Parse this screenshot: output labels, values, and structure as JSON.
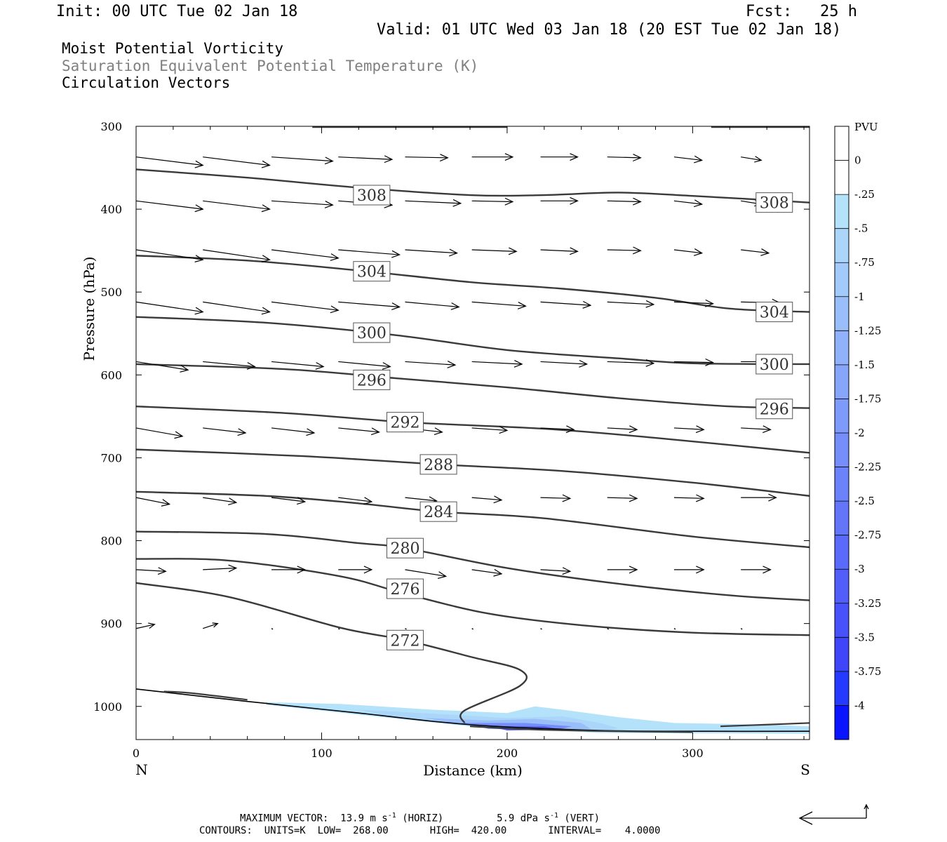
{
  "header": {
    "init": "Init: 00 UTC Tue 02 Jan 18",
    "fcst": "Fcst:   25 h",
    "valid": "Valid: 01 UTC Wed 03 Jan 18 (20 EST Tue 02 Jan 18)"
  },
  "fields": {
    "line1": "Moist Potential Vorticity",
    "line2": "Saturation Equivalent Potential Temperature (K)",
    "line3": "Circulation Vectors"
  },
  "footer": {
    "maxvec_prefix": "MAXIMUM VECTOR:  13.9 m s",
    "horiz": "(HORIZ)",
    "vert_prefix": "5.9 dPa s",
    "vert": "(VERT)",
    "exp": "-1",
    "contours": "CONTOURS:  UNITS=K  LOW=  268.00       HIGH=  420.00       INTERVAL=    4.0000"
  },
  "colors": {
    "contour": "#3a3a3a",
    "vector": "#000000",
    "pv_light": "#b4e2fa",
    "pv_dark": "#0000ff"
  },
  "chart_data": {
    "type": "cross-section",
    "xlabel": "Distance (km)",
    "ylabel": "Pressure (hPa)",
    "xlim": [
      0,
      363
    ],
    "ylim": [
      300,
      1040
    ],
    "x_ticks": [
      0,
      100,
      200,
      300
    ],
    "y_ticks": [
      300,
      400,
      500,
      600,
      700,
      800,
      900,
      1000
    ],
    "x_end_labels": {
      "left": "N",
      "right": "S"
    },
    "colorbar": {
      "unit": "PVU",
      "labels": [
        "0",
        "-.25",
        "-.5",
        "-.75",
        "-1",
        "-1.25",
        "-1.5",
        "-1.75",
        "-2",
        "-2.25",
        "-2.5",
        "-2.75",
        "-3",
        "-3.25",
        "-3.5",
        "-3.75",
        "-4"
      ],
      "colors": [
        "#ffffff",
        "#ffffff",
        "#b4e2fa",
        "#abd6fa",
        "#a2cafa",
        "#99befa",
        "#90b2fa",
        "#87a6fa",
        "#7e9afa",
        "#758efa",
        "#6c82fa",
        "#6376fa",
        "#5a6afa",
        "#515efa",
        "#4852fa",
        "#3f46fa",
        "#243aff",
        "#0a14ff"
      ]
    },
    "contours": [
      {
        "label": "308",
        "points": [
          [
            0,
            352
          ],
          [
            60,
            362
          ],
          [
            120,
            374
          ],
          [
            180,
            383
          ],
          [
            220,
            383
          ],
          [
            260,
            380
          ],
          [
            300,
            384
          ],
          [
            363,
            392
          ]
        ],
        "label_positions": [
          [
            127,
            383
          ],
          [
            344,
            392
          ]
        ]
      },
      {
        "label": "304",
        "points": [
          [
            0,
            456
          ],
          [
            60,
            462
          ],
          [
            120,
            474
          ],
          [
            180,
            488
          ],
          [
            230,
            496
          ],
          [
            280,
            507
          ],
          [
            320,
            520
          ],
          [
            363,
            524
          ]
        ],
        "label_positions": [
          [
            127,
            475
          ],
          [
            344,
            524
          ]
        ]
      },
      {
        "label": "300",
        "points": [
          [
            0,
            530
          ],
          [
            70,
            537
          ],
          [
            140,
            552
          ],
          [
            200,
            570
          ],
          [
            260,
            580
          ],
          [
            300,
            586
          ],
          [
            363,
            587
          ]
        ],
        "label_positions": [
          [
            127,
            549
          ],
          [
            344,
            587
          ]
        ]
      },
      {
        "label": "296",
        "points": [
          [
            0,
            587
          ],
          [
            80,
            593
          ],
          [
            140,
            604
          ],
          [
            200,
            615
          ],
          [
            260,
            628
          ],
          [
            320,
            638
          ],
          [
            363,
            640
          ]
        ],
        "label_positions": [
          [
            127,
            606
          ],
          [
            344,
            641
          ]
        ]
      },
      {
        "label": "292",
        "points": [
          [
            0,
            638
          ],
          [
            80,
            646
          ],
          [
            145,
            657
          ],
          [
            220,
            665
          ],
          [
            280,
            676
          ],
          [
            363,
            694
          ]
        ],
        "label_positions": [
          [
            145,
            657
          ]
        ]
      },
      {
        "label": "288",
        "points": [
          [
            0,
            690
          ],
          [
            90,
            698
          ],
          [
            163,
            708
          ],
          [
            230,
            716
          ],
          [
            300,
            730
          ],
          [
            363,
            746
          ]
        ],
        "label_positions": [
          [
            163,
            708
          ]
        ]
      },
      {
        "label": "284",
        "points": [
          [
            0,
            741
          ],
          [
            70,
            746
          ],
          [
            120,
            755
          ],
          [
            163,
            765
          ],
          [
            220,
            773
          ],
          [
            300,
            795
          ],
          [
            363,
            808
          ]
        ],
        "label_positions": [
          [
            163,
            765
          ]
        ]
      },
      {
        "label": "280",
        "points": [
          [
            0,
            789
          ],
          [
            70,
            792
          ],
          [
            120,
            803
          ],
          [
            145,
            809
          ],
          [
            200,
            833
          ],
          [
            260,
            852
          ],
          [
            320,
            866
          ],
          [
            363,
            872
          ]
        ],
        "label_positions": [
          [
            145,
            809
          ]
        ]
      },
      {
        "label": "276",
        "points": [
          [
            0,
            822
          ],
          [
            50,
            824
          ],
          [
            110,
            843
          ],
          [
            145,
            864
          ],
          [
            190,
            888
          ],
          [
            240,
            902
          ],
          [
            300,
            911
          ],
          [
            363,
            914
          ]
        ],
        "label_positions": [
          [
            145,
            858
          ]
        ]
      },
      {
        "label": "272",
        "points": [
          [
            0,
            851
          ],
          [
            50,
            868
          ],
          [
            110,
            905
          ],
          [
            145,
            920
          ],
          [
            180,
            940
          ],
          [
            207,
            956
          ],
          [
            207,
            975
          ],
          [
            177,
            1005
          ],
          [
            177,
            1020
          ]
        ],
        "label_positions": [
          [
            145,
            920
          ]
        ]
      }
    ],
    "surface_line": [
      [
        0,
        979
      ],
      [
        60,
        994
      ],
      [
        120,
        1008
      ],
      [
        180,
        1022
      ],
      [
        250,
        1029
      ],
      [
        310,
        1030
      ],
      [
        363,
        1030
      ]
    ],
    "surface_fragments": [
      [
        [
          15,
          982
        ],
        [
          30,
          984
        ],
        [
          60,
          992
        ]
      ],
      [
        [
          315,
          1024
        ],
        [
          340,
          1022
        ],
        [
          363,
          1020
        ]
      ],
      [
        [
          180,
          1024
        ],
        [
          215,
          1028
        ],
        [
          260,
          1030
        ],
        [
          300,
          1031
        ]
      ]
    ],
    "pv_shading": {
      "value_range": [
        "-.25",
        "-4"
      ],
      "regions": [
        {
          "level": "-.25",
          "points": [
            [
              70,
              995
            ],
            [
              110,
              997
            ],
            [
              160,
              1004
            ],
            [
              200,
              1008
            ],
            [
              215,
              1000
            ],
            [
              230,
              1004
            ],
            [
              260,
              1013
            ],
            [
              290,
              1020
            ],
            [
              340,
              1022
            ],
            [
              363,
              1024
            ],
            [
              363,
              1033
            ],
            [
              250,
              1032
            ],
            [
              180,
              1024
            ],
            [
              120,
              1010
            ],
            [
              70,
              998
            ]
          ]
        },
        {
          "level": "-.5",
          "points": [
            [
              120,
              1004
            ],
            [
              170,
              1010
            ],
            [
              200,
              1014
            ],
            [
              230,
              1012
            ],
            [
              250,
              1020
            ],
            [
              260,
              1026
            ],
            [
              250,
              1031
            ],
            [
              190,
              1026
            ],
            [
              140,
              1014
            ]
          ]
        },
        {
          "level": "-1",
          "points": [
            [
              155,
              1014
            ],
            [
              190,
              1017
            ],
            [
              215,
              1015
            ],
            [
              240,
              1020
            ],
            [
              245,
              1027
            ],
            [
              200,
              1028
            ],
            [
              170,
              1020
            ]
          ]
        },
        {
          "level": "-2",
          "points": [
            [
              175,
              1020
            ],
            [
              210,
              1020
            ],
            [
              235,
              1024
            ],
            [
              225,
              1029
            ],
            [
              190,
              1027
            ]
          ]
        },
        {
          "level": "-3",
          "points": [
            [
              190,
              1024
            ],
            [
              220,
              1024
            ],
            [
              230,
              1028
            ],
            [
              200,
              1029
            ]
          ]
        }
      ]
    },
    "vectors": {
      "x_positions": [
        0,
        36,
        73,
        109,
        145,
        181,
        218,
        254,
        290,
        326
      ],
      "rows": [
        {
          "p": 337,
          "dx": [
            36,
            36,
            33,
            29,
            23,
            22,
            20,
            18,
            15,
            11
          ],
          "dy": [
            10,
            10,
            5,
            3,
            1,
            0,
            0,
            1,
            4,
            4
          ]
        },
        {
          "p": 390,
          "dx": [
            36,
            36,
            33,
            29,
            30,
            22,
            20,
            18,
            15,
            11
          ],
          "dy": [
            10,
            10,
            5,
            5,
            3,
            1,
            0,
            1,
            4,
            4
          ]
        },
        {
          "p": 449,
          "dx": [
            36,
            36,
            36,
            33,
            28,
            24,
            20,
            18,
            15,
            15
          ],
          "dy": [
            12,
            12,
            10,
            6,
            4,
            2,
            2,
            1,
            4,
            4
          ]
        },
        {
          "p": 512,
          "dx": [
            36,
            36,
            36,
            33,
            29,
            29,
            27,
            25,
            21,
            21
          ],
          "dy": [
            12,
            12,
            10,
            6,
            6,
            5,
            4,
            3,
            2,
            1
          ]
        },
        {
          "p": 584,
          "dx": [
            28,
            28,
            28,
            28,
            27,
            27,
            25,
            25,
            21,
            19
          ],
          "dy": [
            10,
            6,
            6,
            6,
            4,
            3,
            3,
            2,
            1,
            0
          ]
        },
        {
          "p": 664,
          "dx": [
            25,
            23,
            23,
            22,
            20,
            19,
            18,
            16,
            16,
            16
          ],
          "dy": [
            10,
            6,
            6,
            5,
            5,
            3,
            2,
            2,
            2,
            2
          ]
        },
        {
          "p": 748,
          "dx": [
            18,
            18,
            18,
            18,
            17,
            16,
            16,
            16,
            16,
            19
          ],
          "dy": [
            8,
            6,
            5,
            5,
            4,
            3,
            1,
            1,
            1,
            0
          ]
        },
        {
          "p": 835,
          "dx": [
            16,
            18,
            18,
            18,
            22,
            16,
            16,
            16,
            16,
            16
          ],
          "dy": [
            2,
            -2,
            0,
            0,
            8,
            5,
            2,
            0,
            0,
            0
          ]
        },
        {
          "p": 906,
          "dx": [
            10,
            8,
            1,
            0,
            0,
            0,
            0,
            0,
            0,
            0
          ],
          "dy": [
            -5,
            -6,
            0,
            0,
            0,
            0,
            0,
            0,
            0,
            0
          ]
        }
      ],
      "legend": {
        "horiz": "13.9 m s-1",
        "vert": "5.9 dPa s-1"
      }
    }
  }
}
